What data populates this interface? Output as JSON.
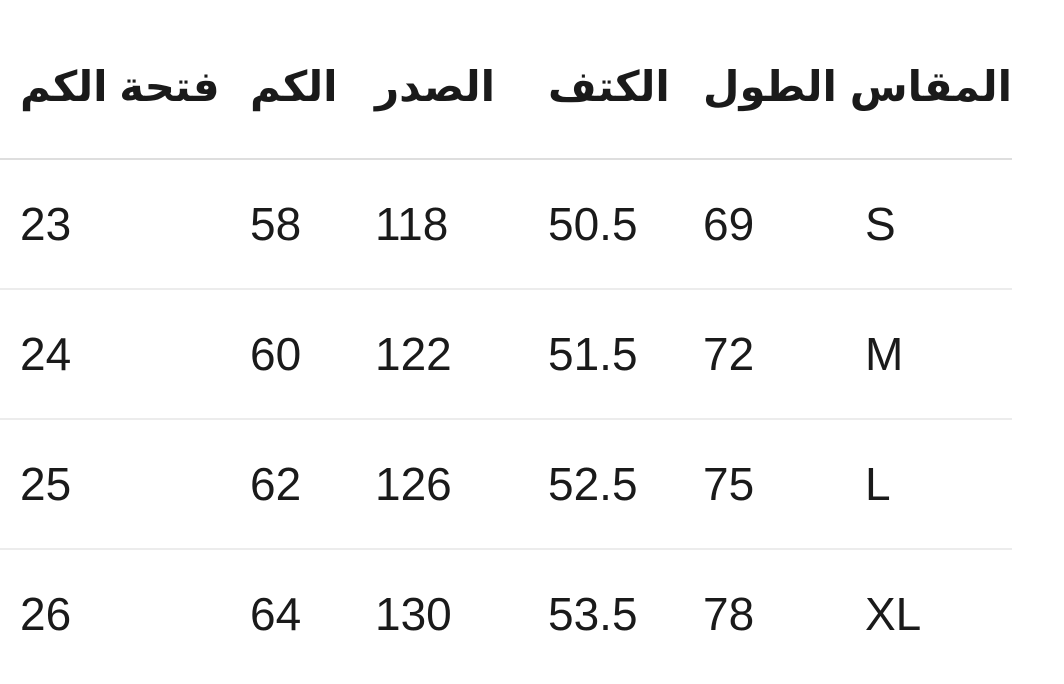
{
  "colors": {
    "background": "#ffffff",
    "text": "#1a1a1a",
    "header_divider": "#dedede",
    "row_divider": "#ececec"
  },
  "size_chart": {
    "direction": "rtl",
    "columns": [
      {
        "id": "size",
        "label": "المقاس"
      },
      {
        "id": "length",
        "label": "الطول"
      },
      {
        "id": "shoulder",
        "label": "الكتف"
      },
      {
        "id": "chest",
        "label": "الصدر"
      },
      {
        "id": "sleeve",
        "label": "الكم"
      },
      {
        "id": "cuff",
        "label": "فتحة الكم"
      }
    ],
    "rows": [
      {
        "size": "S",
        "length": "69",
        "shoulder": "50.5",
        "chest": "118",
        "sleeve": "58",
        "cuff": "23"
      },
      {
        "size": "M",
        "length": "72",
        "shoulder": "51.5",
        "chest": "122",
        "sleeve": "60",
        "cuff": "24"
      },
      {
        "size": "L",
        "length": "75",
        "shoulder": "52.5",
        "chest": "126",
        "sleeve": "62",
        "cuff": "25"
      },
      {
        "size": "XL",
        "length": "78",
        "shoulder": "53.5",
        "chest": "130",
        "sleeve": "64",
        "cuff": "26"
      }
    ]
  }
}
